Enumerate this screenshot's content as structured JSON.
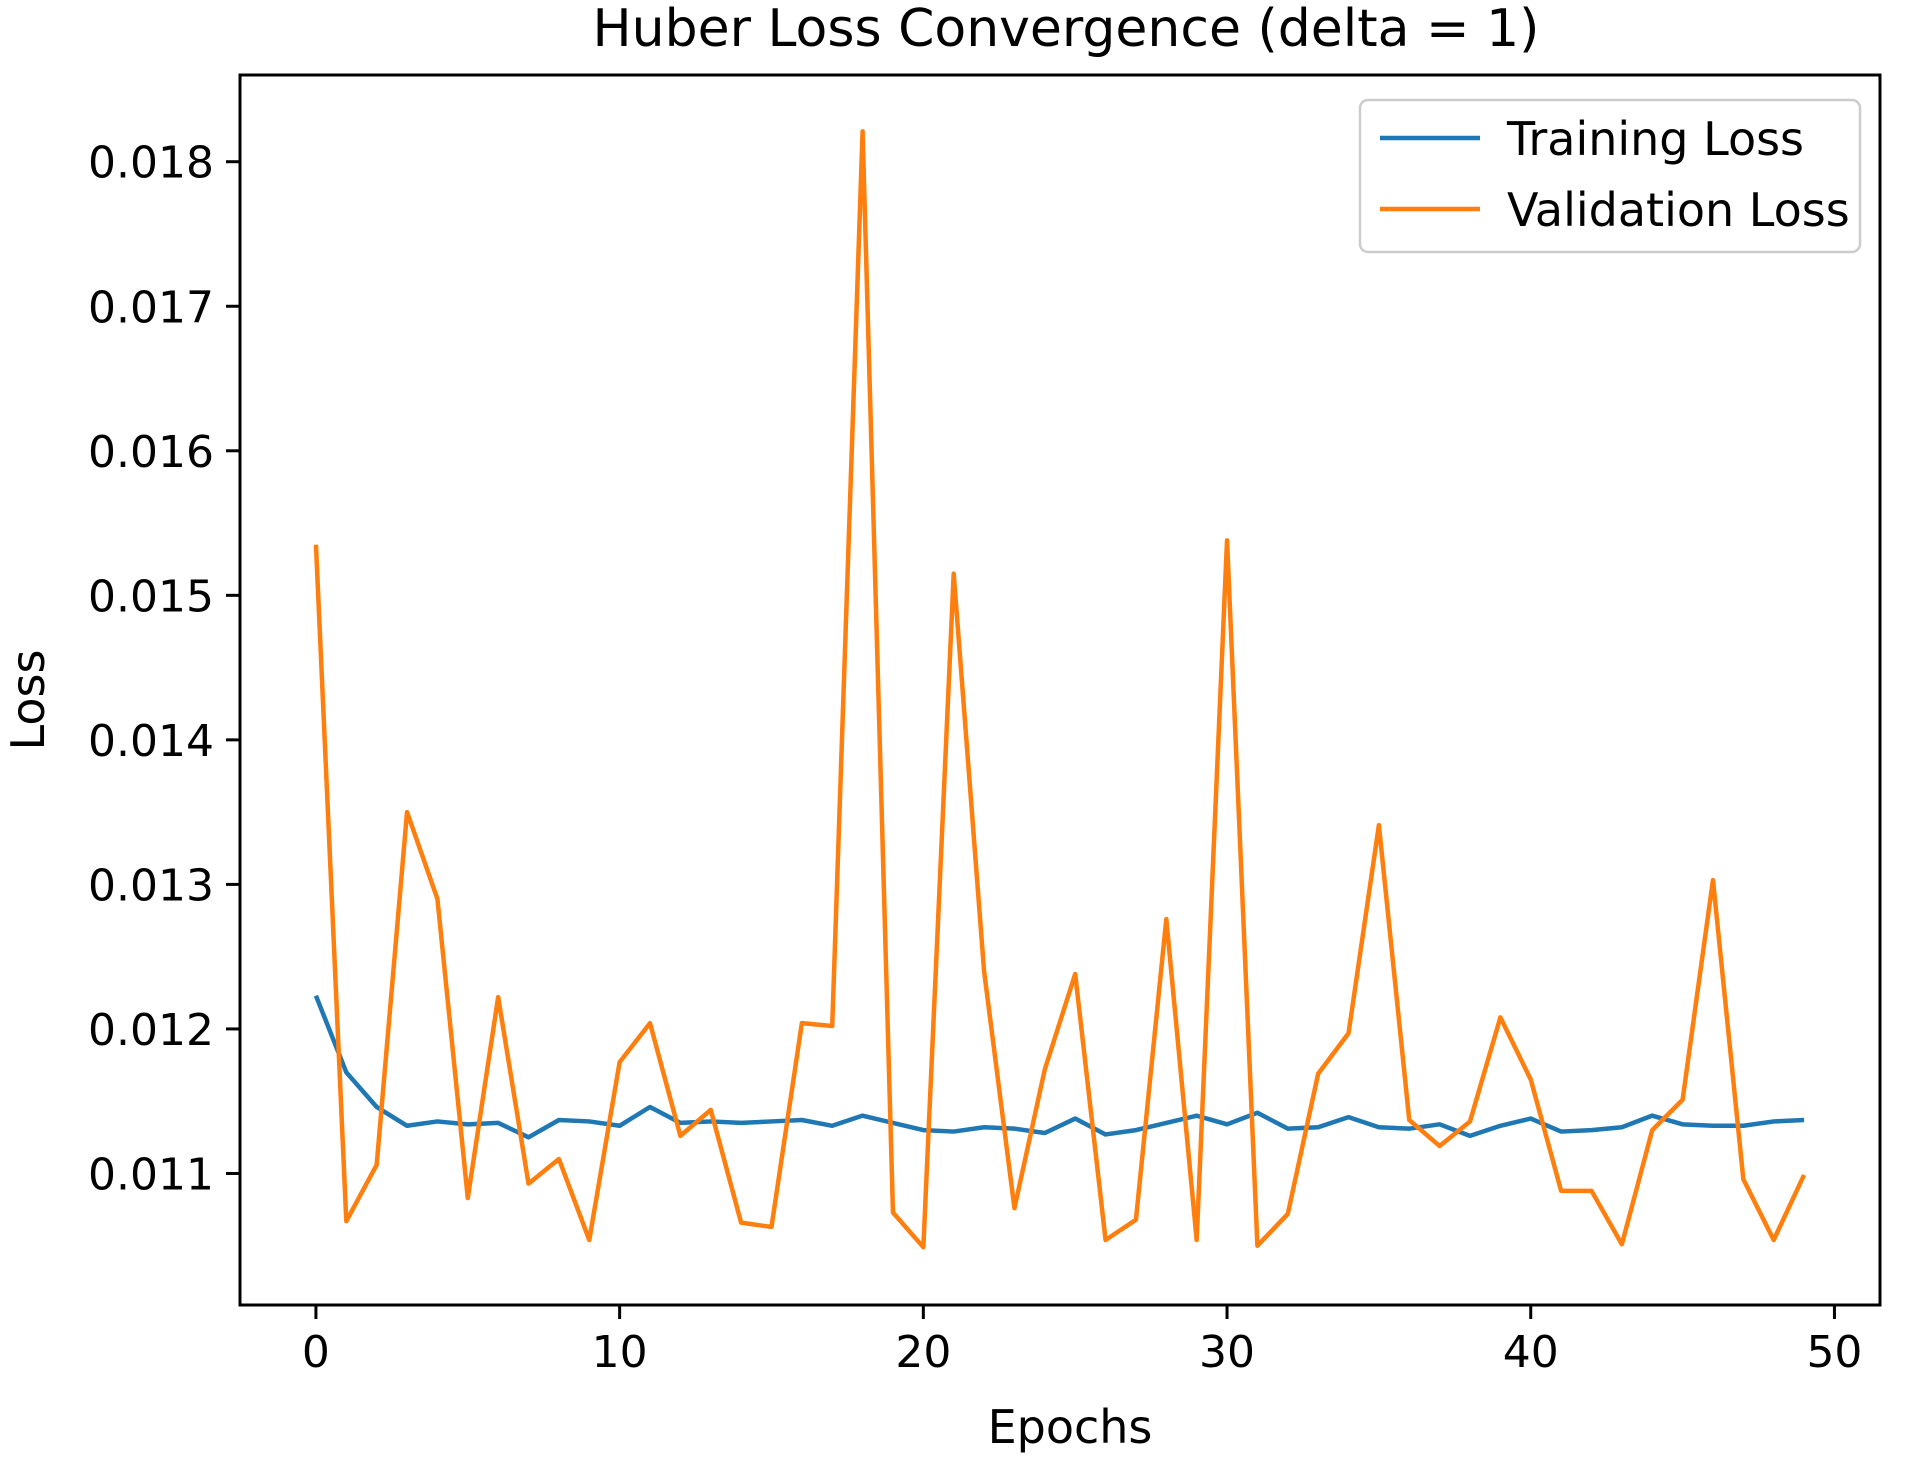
{
  "chart_data": {
    "type": "line",
    "title": "Huber Loss Convergence (delta = 1)",
    "xlabel": "Epochs",
    "ylabel": "Loss",
    "xlim": [
      -2.5,
      51.5
    ],
    "ylim": [
      0.01009,
      0.0186
    ],
    "xticks": [
      0,
      10,
      20,
      30,
      40,
      50
    ],
    "xtick_labels": [
      "0",
      "10",
      "20",
      "30",
      "40",
      "50"
    ],
    "yticks": [
      0.011,
      0.012,
      0.013,
      0.014,
      0.015,
      0.016,
      0.017,
      0.018
    ],
    "ytick_labels": [
      "0.011",
      "0.012",
      "0.013",
      "0.014",
      "0.015",
      "0.016",
      "0.017",
      "0.018"
    ],
    "grid": false,
    "legend_position": "top-right",
    "x": [
      0,
      1,
      2,
      3,
      4,
      5,
      6,
      7,
      8,
      9,
      10,
      11,
      12,
      13,
      14,
      15,
      16,
      17,
      18,
      19,
      20,
      21,
      22,
      23,
      24,
      25,
      26,
      27,
      28,
      29,
      30,
      31,
      32,
      33,
      34,
      35,
      36,
      37,
      38,
      39,
      40,
      41,
      42,
      43,
      44,
      45,
      46,
      47,
      48,
      49
    ],
    "series": [
      {
        "name": "Training Loss",
        "color": "#1f77b4",
        "values": [
          0.01223,
          0.0117,
          0.01146,
          0.01133,
          0.01136,
          0.01134,
          0.01135,
          0.01125,
          0.01137,
          0.01136,
          0.01133,
          0.01146,
          0.01135,
          0.01136,
          0.01135,
          0.01136,
          0.01137,
          0.01133,
          0.0114,
          0.01135,
          0.0113,
          0.01129,
          0.01132,
          0.01131,
          0.01128,
          0.01138,
          0.01127,
          0.0113,
          0.01135,
          0.0114,
          0.01134,
          0.01142,
          0.01131,
          0.01132,
          0.01139,
          0.01132,
          0.01131,
          0.01134,
          0.01126,
          0.01133,
          0.01138,
          0.01129,
          0.0113,
          0.01132,
          0.0114,
          0.01134,
          0.01133,
          0.01133,
          0.01136,
          0.01137
        ]
      },
      {
        "name": "Validation Loss",
        "color": "#ff7f0e",
        "values": [
          0.01535,
          0.01067,
          0.01106,
          0.0135,
          0.0129,
          0.01083,
          0.01222,
          0.01093,
          0.0111,
          0.01054,
          0.01177,
          0.01204,
          0.01126,
          0.01144,
          0.01066,
          0.01063,
          0.01204,
          0.01202,
          0.01821,
          0.01073,
          0.01049,
          0.01515,
          0.0124,
          0.01076,
          0.01172,
          0.01238,
          0.01054,
          0.01068,
          0.01276,
          0.01054,
          0.01538,
          0.0105,
          0.01072,
          0.01169,
          0.01197,
          0.01341,
          0.01137,
          0.01119,
          0.01136,
          0.01208,
          0.01165,
          0.01088,
          0.01088,
          0.01051,
          0.0113,
          0.01151,
          0.01303,
          0.01096,
          0.01054,
          0.01099
        ]
      }
    ]
  }
}
